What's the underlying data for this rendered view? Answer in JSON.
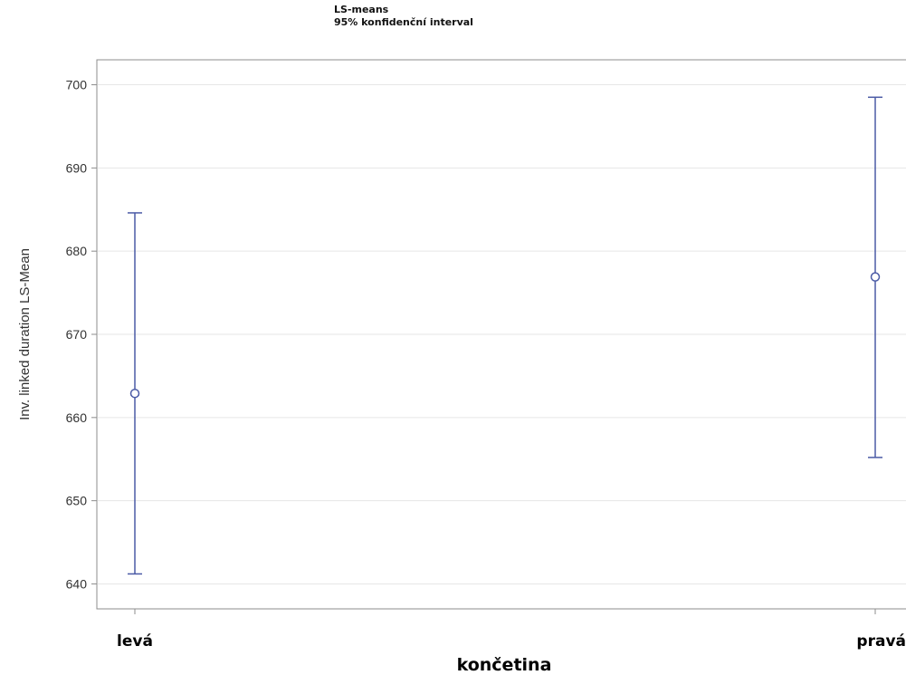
{
  "chart_data": {
    "type": "errorbar",
    "legend": [
      "LS-means",
      "95% konfidenční interval"
    ],
    "legend_position": "top",
    "xlabel": "končetina",
    "ylabel": "Inv. linked duration LS-Mean",
    "categories": [
      "levá",
      "pravá"
    ],
    "means": [
      662.9,
      676.9
    ],
    "lower": [
      641.2,
      655.2
    ],
    "upper": [
      684.6,
      698.5
    ],
    "ylim": [
      637,
      703
    ],
    "yticks": [
      640,
      650,
      660,
      670,
      680,
      690,
      700
    ],
    "grid": "horizontal",
    "colors": {
      "series": "#4B5BA6",
      "grid": "#e6e6e6",
      "frame": "#8c8c8c"
    }
  }
}
